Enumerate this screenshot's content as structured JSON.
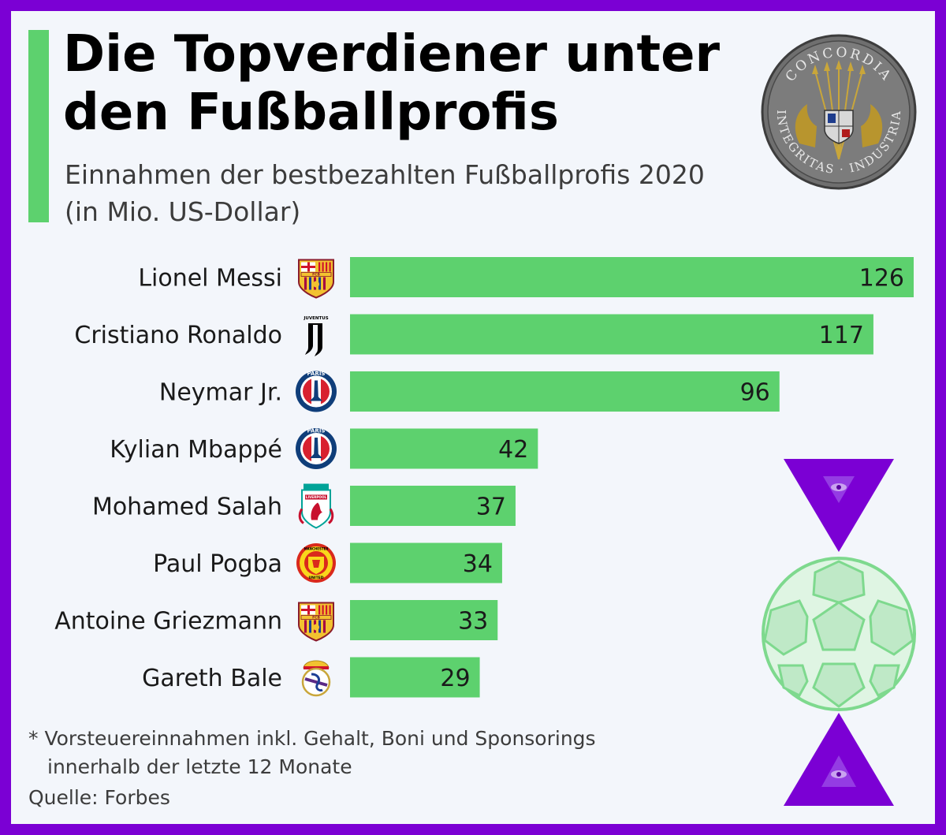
{
  "header": {
    "title_line1": "Die Topverdiener unter",
    "title_line2": "den Fußballprofis",
    "subtitle_line1": "Einnahmen der bestbezahlten Fußballprofis 2020",
    "subtitle_line2": "(in Mio. US-Dollar)"
  },
  "seal": {
    "text_top": "CONCORDIA",
    "text_bottom": "INTEGRITAS · INDUSTRIA"
  },
  "chart_data": {
    "type": "bar",
    "orientation": "horizontal",
    "categories": [
      "Lionel Messi",
      "Cristiano Ronaldo",
      "Neymar Jr.",
      "Kylian Mbappé",
      "Mohamed Salah",
      "Paul Pogba",
      "Antoine Griezmann",
      "Gareth Bale"
    ],
    "values": [
      126,
      117,
      96,
      42,
      37,
      34,
      33,
      29
    ],
    "club_logos": [
      "fc-barcelona",
      "juventus",
      "psg",
      "psg",
      "liverpool",
      "manchester-united",
      "fc-barcelona",
      "real-madrid"
    ],
    "xlim": [
      0,
      126
    ],
    "bar_color": "#5dd16e",
    "grid": false,
    "data_labels": true
  },
  "footnote": {
    "line1": "* Vorsteuereinnahmen inkl. Gehalt, Boni und Sponsorings",
    "line2": "innerhalb der letzte 12 Monate"
  },
  "source": "Quelle: Forbes",
  "colors": {
    "frame": "#7b00d4",
    "background": "#f3f6fb",
    "accent": "#5dd16e",
    "triangle": "#7b00d4"
  },
  "logo_text": {
    "juventus": "JUVENTUS",
    "psg": "PARIS",
    "barcelona": "FCB",
    "liverpool": "LIVERPOOL",
    "manutd_top": "MANCHESTER",
    "manutd_bottom": "UNITED"
  }
}
